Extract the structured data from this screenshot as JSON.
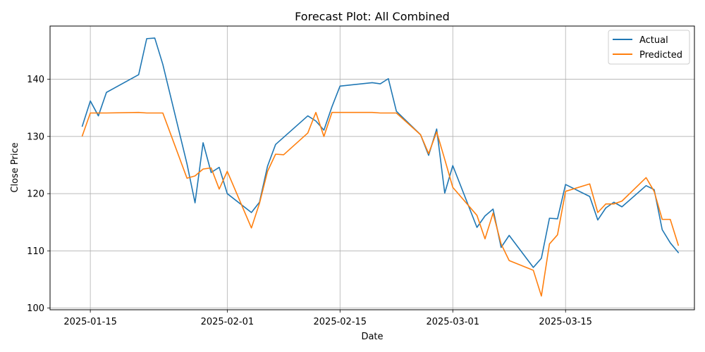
{
  "chart_data": {
    "type": "line",
    "title": "Forecast Plot: All Combined",
    "xlabel": "Date",
    "ylabel": "Close Price",
    "x_ticks": [
      "2025-01-15",
      "2025-02-01",
      "2025-02-15",
      "2025-03-01",
      "2025-03-15"
    ],
    "y_ticks": [
      100,
      110,
      120,
      130,
      140
    ],
    "xlim": [
      "2025-01-10",
      "2025-03-31"
    ],
    "ylim": [
      99.7,
      149.3
    ],
    "grid": true,
    "legend": "top-right",
    "series": [
      {
        "name": "Actual",
        "color": "#1f77b4",
        "points": [
          [
            "2025-01-14",
            131.8
          ],
          [
            "2025-01-15",
            136.2
          ],
          [
            "2025-01-16",
            133.6
          ],
          [
            "2025-01-17",
            137.7
          ],
          [
            "2025-01-21",
            140.8
          ],
          [
            "2025-01-22",
            147.1
          ],
          [
            "2025-01-23",
            147.2
          ],
          [
            "2025-01-24",
            142.6
          ],
          [
            "2025-01-27",
            125.2
          ],
          [
            "2025-01-28",
            118.4
          ],
          [
            "2025-01-29",
            128.9
          ],
          [
            "2025-01-30",
            123.7
          ],
          [
            "2025-01-31",
            124.6
          ],
          [
            "2025-02-01",
            120.0
          ],
          [
            "2025-02-04",
            116.7
          ],
          [
            "2025-02-05",
            118.5
          ],
          [
            "2025-02-06",
            124.8
          ],
          [
            "2025-02-07",
            128.6
          ],
          [
            "2025-02-11",
            133.6
          ],
          [
            "2025-02-12",
            132.7
          ],
          [
            "2025-02-13",
            131.1
          ],
          [
            "2025-02-14",
            135.2
          ],
          [
            "2025-02-15",
            138.8
          ],
          [
            "2025-02-19",
            139.4
          ],
          [
            "2025-02-20",
            139.2
          ],
          [
            "2025-02-21",
            140.1
          ],
          [
            "2025-02-22",
            134.4
          ],
          [
            "2025-02-25",
            130.3
          ],
          [
            "2025-02-26",
            126.7
          ],
          [
            "2025-02-27",
            131.3
          ],
          [
            "2025-02-28",
            120.1
          ],
          [
            "2025-03-01",
            124.9
          ],
          [
            "2025-03-04",
            114.1
          ],
          [
            "2025-03-05",
            116.1
          ],
          [
            "2025-03-06",
            117.3
          ],
          [
            "2025-03-07",
            110.6
          ],
          [
            "2025-03-08",
            112.7
          ],
          [
            "2025-03-11",
            107.1
          ],
          [
            "2025-03-12",
            108.7
          ],
          [
            "2025-03-13",
            115.7
          ],
          [
            "2025-03-14",
            115.6
          ],
          [
            "2025-03-15",
            121.6
          ],
          [
            "2025-03-18",
            119.5
          ],
          [
            "2025-03-19",
            115.4
          ],
          [
            "2025-03-20",
            117.5
          ],
          [
            "2025-03-21",
            118.5
          ],
          [
            "2025-03-22",
            117.7
          ],
          [
            "2025-03-25",
            121.4
          ],
          [
            "2025-03-26",
            120.7
          ],
          [
            "2025-03-27",
            113.7
          ],
          [
            "2025-03-28",
            111.4
          ],
          [
            "2025-03-29",
            109.7
          ]
        ]
      },
      {
        "name": "Predicted",
        "color": "#ff7f0e",
        "points": [
          [
            "2025-01-14",
            130.1
          ],
          [
            "2025-01-15",
            134.1
          ],
          [
            "2025-01-16",
            134.1
          ],
          [
            "2025-01-17",
            134.1
          ],
          [
            "2025-01-21",
            134.2
          ],
          [
            "2025-01-22",
            134.1
          ],
          [
            "2025-01-23",
            134.1
          ],
          [
            "2025-01-24",
            134.1
          ],
          [
            "2025-01-27",
            122.7
          ],
          [
            "2025-01-28",
            123.1
          ],
          [
            "2025-01-29",
            124.3
          ],
          [
            "2025-01-30",
            124.5
          ],
          [
            "2025-01-31",
            120.8
          ],
          [
            "2025-02-01",
            123.9
          ],
          [
            "2025-02-04",
            114.0
          ],
          [
            "2025-02-05",
            118.3
          ],
          [
            "2025-02-06",
            123.9
          ],
          [
            "2025-02-07",
            126.9
          ],
          [
            "2025-02-08",
            126.8
          ],
          [
            "2025-02-11",
            130.6
          ],
          [
            "2025-02-12",
            134.2
          ],
          [
            "2025-02-13",
            130.0
          ],
          [
            "2025-02-14",
            134.2
          ],
          [
            "2025-02-15",
            134.2
          ],
          [
            "2025-02-19",
            134.2
          ],
          [
            "2025-02-20",
            134.1
          ],
          [
            "2025-02-22",
            134.1
          ],
          [
            "2025-02-25",
            130.3
          ],
          [
            "2025-02-26",
            127.0
          ],
          [
            "2025-02-27",
            130.8
          ],
          [
            "2025-02-28",
            126.0
          ],
          [
            "2025-03-01",
            121.1
          ],
          [
            "2025-03-04",
            116.2
          ],
          [
            "2025-03-05",
            112.1
          ],
          [
            "2025-03-06",
            116.6
          ],
          [
            "2025-03-07",
            111.2
          ],
          [
            "2025-03-08",
            108.3
          ],
          [
            "2025-03-11",
            106.6
          ],
          [
            "2025-03-12",
            102.1
          ],
          [
            "2025-03-13",
            111.2
          ],
          [
            "2025-03-14",
            112.8
          ],
          [
            "2025-03-15",
            120.4
          ],
          [
            "2025-03-18",
            121.7
          ],
          [
            "2025-03-19",
            116.7
          ],
          [
            "2025-03-20",
            118.2
          ],
          [
            "2025-03-21",
            118.2
          ],
          [
            "2025-03-22",
            118.7
          ],
          [
            "2025-03-25",
            122.8
          ],
          [
            "2025-03-26",
            120.4
          ],
          [
            "2025-03-27",
            115.5
          ],
          [
            "2025-03-28",
            115.5
          ],
          [
            "2025-03-29",
            111.0
          ]
        ]
      }
    ]
  }
}
